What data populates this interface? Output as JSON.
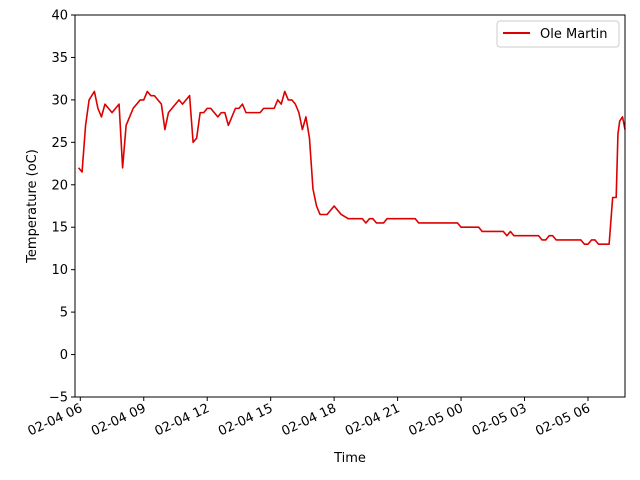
{
  "chart_data": {
    "type": "line",
    "title": "",
    "xlabel": "Time",
    "ylabel": "Temperature (oC)",
    "ylim": [
      -5,
      40
    ],
    "xlim": [
      "2026-02-04 05:45",
      "2026-02-05 07:45"
    ],
    "y_ticks": [
      -5,
      0,
      5,
      10,
      15,
      20,
      25,
      30,
      35,
      40
    ],
    "x_ticks": [
      {
        "t": "2026-02-04 06:00",
        "label": "02-04 06"
      },
      {
        "t": "2026-02-04 09:00",
        "label": "02-04 09"
      },
      {
        "t": "2026-02-04 12:00",
        "label": "02-04 12"
      },
      {
        "t": "2026-02-04 15:00",
        "label": "02-04 15"
      },
      {
        "t": "2026-02-04 18:00",
        "label": "02-04 18"
      },
      {
        "t": "2026-02-04 21:00",
        "label": "02-04 21"
      },
      {
        "t": "2026-02-05 00:00",
        "label": "02-05 00"
      },
      {
        "t": "2026-02-05 03:00",
        "label": "02-05 03"
      },
      {
        "t": "2026-02-05 06:00",
        "label": "02-05 06"
      }
    ],
    "grid": false,
    "legend": "top-right",
    "series": [
      {
        "name": "Ole Martin",
        "color": "#dd0000",
        "points": [
          [
            "2026-02-04 05:55",
            22.0
          ],
          [
            "2026-02-04 06:05",
            21.5
          ],
          [
            "2026-02-04 06:15",
            27.0
          ],
          [
            "2026-02-04 06:25",
            30.0
          ],
          [
            "2026-02-04 06:40",
            31.0
          ],
          [
            "2026-02-04 06:50",
            29.0
          ],
          [
            "2026-02-04 07:00",
            28.0
          ],
          [
            "2026-02-04 07:10",
            29.5
          ],
          [
            "2026-02-04 07:30",
            28.5
          ],
          [
            "2026-02-04 07:50",
            29.5
          ],
          [
            "2026-02-04 08:00",
            22.0
          ],
          [
            "2026-02-04 08:10",
            27.0
          ],
          [
            "2026-02-04 08:30",
            29.0
          ],
          [
            "2026-02-04 08:50",
            30.0
          ],
          [
            "2026-02-04 09:00",
            30.0
          ],
          [
            "2026-02-04 09:10",
            31.0
          ],
          [
            "2026-02-04 09:20",
            30.5
          ],
          [
            "2026-02-04 09:30",
            30.5
          ],
          [
            "2026-02-04 09:50",
            29.5
          ],
          [
            "2026-02-04 10:00",
            26.5
          ],
          [
            "2026-02-04 10:10",
            28.5
          ],
          [
            "2026-02-04 10:30",
            29.5
          ],
          [
            "2026-02-04 10:40",
            30.0
          ],
          [
            "2026-02-04 10:50",
            29.5
          ],
          [
            "2026-02-04 11:10",
            30.5
          ],
          [
            "2026-02-04 11:20",
            25.0
          ],
          [
            "2026-02-04 11:30",
            25.5
          ],
          [
            "2026-02-04 11:40",
            28.5
          ],
          [
            "2026-02-04 11:50",
            28.5
          ],
          [
            "2026-02-04 12:00",
            29.0
          ],
          [
            "2026-02-04 12:10",
            29.0
          ],
          [
            "2026-02-04 12:30",
            28.0
          ],
          [
            "2026-02-04 12:40",
            28.5
          ],
          [
            "2026-02-04 12:50",
            28.5
          ],
          [
            "2026-02-04 13:00",
            27.0
          ],
          [
            "2026-02-04 13:20",
            29.0
          ],
          [
            "2026-02-04 13:30",
            29.0
          ],
          [
            "2026-02-04 13:40",
            29.5
          ],
          [
            "2026-02-04 13:50",
            28.5
          ],
          [
            "2026-02-04 14:30",
            28.5
          ],
          [
            "2026-02-04 14:40",
            29.0
          ],
          [
            "2026-02-04 15:10",
            29.0
          ],
          [
            "2026-02-04 15:20",
            30.0
          ],
          [
            "2026-02-04 15:30",
            29.5
          ],
          [
            "2026-02-04 15:40",
            31.0
          ],
          [
            "2026-02-04 15:50",
            30.0
          ],
          [
            "2026-02-04 16:00",
            30.0
          ],
          [
            "2026-02-04 16:10",
            29.5
          ],
          [
            "2026-02-04 16:20",
            28.5
          ],
          [
            "2026-02-04 16:30",
            26.5
          ],
          [
            "2026-02-04 16:40",
            28.0
          ],
          [
            "2026-02-04 16:50",
            25.5
          ],
          [
            "2026-02-04 17:00",
            19.5
          ],
          [
            "2026-02-04 17:10",
            17.5
          ],
          [
            "2026-02-04 17:20",
            16.5
          ],
          [
            "2026-02-04 17:40",
            16.5
          ],
          [
            "2026-02-04 18:00",
            17.5
          ],
          [
            "2026-02-04 18:20",
            16.5
          ],
          [
            "2026-02-04 18:40",
            16.0
          ],
          [
            "2026-02-04 19:20",
            16.0
          ],
          [
            "2026-02-04 19:30",
            15.5
          ],
          [
            "2026-02-04 19:40",
            16.0
          ],
          [
            "2026-02-04 19:50",
            16.0
          ],
          [
            "2026-02-04 20:00",
            15.5
          ],
          [
            "2026-02-04 20:20",
            15.5
          ],
          [
            "2026-02-04 20:30",
            16.0
          ],
          [
            "2026-02-04 21:50",
            16.0
          ],
          [
            "2026-02-04 22:00",
            15.5
          ],
          [
            "2026-02-04 23:50",
            15.5
          ],
          [
            "2026-02-05 00:00",
            15.0
          ],
          [
            "2026-02-05 00:50",
            15.0
          ],
          [
            "2026-02-05 01:00",
            14.5
          ],
          [
            "2026-02-05 02:00",
            14.5
          ],
          [
            "2026-02-05 02:10",
            14.0
          ],
          [
            "2026-02-05 02:20",
            14.5
          ],
          [
            "2026-02-05 02:30",
            14.0
          ],
          [
            "2026-02-05 03:40",
            14.0
          ],
          [
            "2026-02-05 03:50",
            13.5
          ],
          [
            "2026-02-05 04:00",
            13.5
          ],
          [
            "2026-02-05 04:10",
            14.0
          ],
          [
            "2026-02-05 04:20",
            14.0
          ],
          [
            "2026-02-05 04:30",
            13.5
          ],
          [
            "2026-02-05 05:40",
            13.5
          ],
          [
            "2026-02-05 05:50",
            13.0
          ],
          [
            "2026-02-05 06:00",
            13.0
          ],
          [
            "2026-02-05 06:10",
            13.5
          ],
          [
            "2026-02-05 06:20",
            13.5
          ],
          [
            "2026-02-05 06:30",
            13.0
          ],
          [
            "2026-02-05 07:00",
            13.0
          ],
          [
            "2026-02-05 07:10",
            18.5
          ],
          [
            "2026-02-05 07:20",
            18.5
          ],
          [
            "2026-02-05 07:25",
            26.0
          ],
          [
            "2026-02-05 07:30",
            27.5
          ],
          [
            "2026-02-05 07:38",
            28.0
          ],
          [
            "2026-02-05 07:45",
            26.5
          ]
        ]
      }
    ]
  }
}
